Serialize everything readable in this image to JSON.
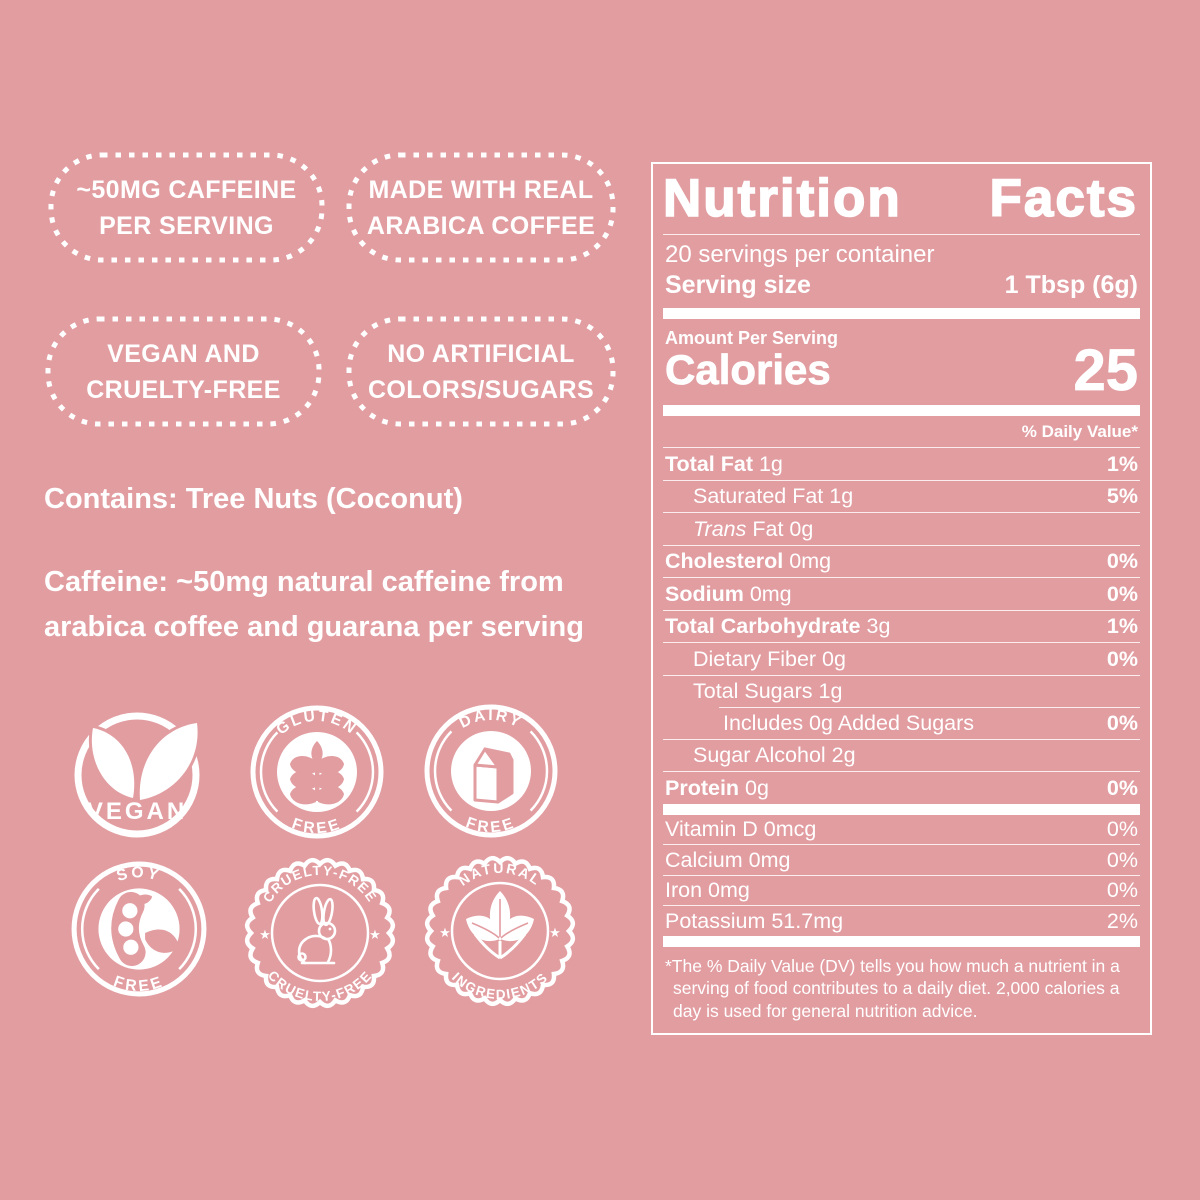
{
  "colors": {
    "background": "#E29DA1",
    "foreground": "#FFFFFF"
  },
  "claims": [
    {
      "line1": "~50MG CAFFEINE",
      "line2": "PER SERVING"
    },
    {
      "line1": "MADE WITH REAL",
      "line2": "ARABICA COFFEE"
    },
    {
      "line1": "VEGAN AND",
      "line2": "CRUELTY-FREE"
    },
    {
      "line1": "NO ARTIFICIAL",
      "line2": "COLORS/SUGARS"
    }
  ],
  "notes": {
    "contains": "Contains: Tree Nuts (Coconut)",
    "caffeine": "Caffeine: ~50mg natural caffeine from arabica coffee and guarana per serving"
  },
  "seals": {
    "vegan": {
      "label": "VEGAN"
    },
    "gluten": {
      "top": "GLUTEN",
      "bottom": "FREE"
    },
    "dairy": {
      "top": "DAIRY",
      "bottom": "FREE"
    },
    "soy": {
      "top": "SOY",
      "bottom": "FREE"
    },
    "cruelty": {
      "top": "CRUELTY-FREE",
      "bottom": "CRUELTY-FREE",
      "star": "★"
    },
    "natural": {
      "top": "NATURAL",
      "bottom": "INGREDIENTS",
      "star": "★"
    }
  },
  "nutrition_facts": {
    "title": {
      "word1": "Nutrition",
      "word2": "Facts"
    },
    "servings_per_container": "20 servings per container",
    "serving_size": {
      "label": "Serving size",
      "value": "1 Tbsp (6g)"
    },
    "amount_per_serving": "Amount Per Serving",
    "calories": {
      "label": "Calories",
      "value": "25"
    },
    "daily_value_header": "% Daily Value*",
    "rows": [
      {
        "b": "Total Fat",
        "r": " 1g",
        "pct": "1%"
      },
      {
        "r": "Saturated Fat 1g",
        "pct": "5%"
      },
      {
        "i": "Trans",
        "r": " Fat 0g"
      },
      {
        "b": "Cholesterol",
        "r": " 0mg",
        "pct": "0%"
      },
      {
        "b": "Sodium",
        "r": " 0mg",
        "pct": "0%"
      },
      {
        "b": "Total Carbohydrate",
        "r": " 3g",
        "pct": "1%"
      },
      {
        "r": "Dietary Fiber 0g",
        "pct": "0%"
      },
      {
        "r": "Total Sugars 1g"
      },
      {
        "r": "Includes 0g Added Sugars",
        "pct": "0%"
      },
      {
        "r": "Sugar Alcohol 2g"
      },
      {
        "b": "Protein",
        "r": " 0g",
        "pct": "0%"
      }
    ],
    "vitamins": [
      {
        "r": "Vitamin D 0mcg",
        "pct": "0%"
      },
      {
        "r": "Calcium 0mg",
        "pct": "0%"
      },
      {
        "r": "Iron 0mg",
        "pct": "0%"
      },
      {
        "r": "Potassium 51.7mg",
        "pct": "2%"
      }
    ],
    "footnote": "*The % Daily Value (DV) tells you how much a nutrient in a serving of food contributes to a daily diet. 2,000 calories a day is used for general nutrition advice."
  }
}
